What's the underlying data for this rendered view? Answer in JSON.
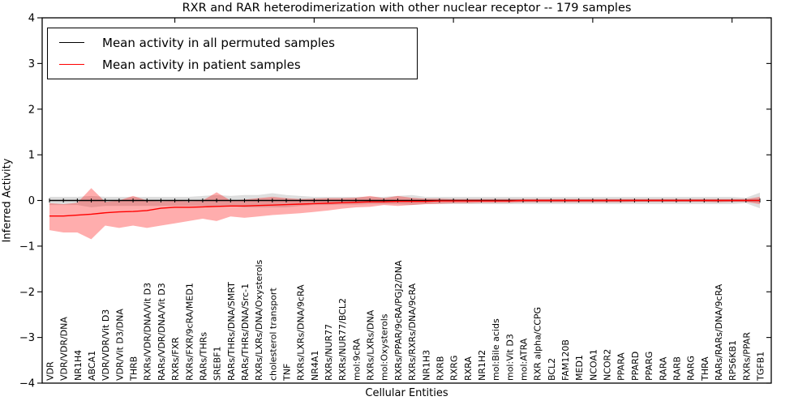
{
  "chart_data": {
    "type": "line",
    "title": "RXR and RAR heterodimerization with other nuclear receptor -- 179 samples",
    "xlabel": "Cellular Entities",
    "ylabel": "Inferred Activity",
    "ylim": [
      -4,
      4
    ],
    "yticks": [
      4,
      3,
      2,
      1,
      0,
      -1,
      -2,
      -3,
      -4
    ],
    "grid": false,
    "legend_position": "upper left",
    "x_categories": [
      "VDR",
      "VDR/VDR/DNA",
      "NR1H4",
      "ABCA1",
      "VDR/VDR/Vit D3",
      "VDR/Vit D3/DNA",
      "THRB",
      "RXRs/VDR/DNA/Vit D3",
      "RARs/VDR/DNA/Vit D3",
      "RXRs/FXR",
      "RXRs/FXR/9cRA/MED1",
      "RARs/THRs",
      "SREBF1",
      "RARs/THRs/DNA/SMRT",
      "RARs/THRs/DNA/Src-1",
      "RXRs/LXRs/DNA/Oxysterols",
      "cholesterol transport",
      "TNF",
      "RXRs/LXRs/DNA/9cRA",
      "NR4A1",
      "RXRs/NUR77",
      "RXRs/NUR77/BCL2",
      "mol:9cRA",
      "RXRs/LXRs/DNA",
      "mol:Oxysterols",
      "RXRs/PPAR/9cRA/PGJ2/DNA",
      "RXRs/RXRs/DNA/9cRA",
      "NR1H3",
      "RXRB",
      "RXRG",
      "RXRA",
      "NR1H2",
      "mol:Bile acids",
      "mol:Vit D3",
      "mol:ATRA",
      "RXR alpha/CCPG",
      "BCL2",
      "FAM120B",
      "MED1",
      "NCOA1",
      "NCOR2",
      "PPARA",
      "PPARD",
      "PPARG",
      "RARA",
      "RARB",
      "RARG",
      "THRA",
      "RARs/RARs/DNA/9cRA",
      "RPS6KB1",
      "RXRs/PPAR",
      "TGFB1"
    ],
    "series": [
      {
        "name": "Mean activity in all permuted samples",
        "color": "#000000",
        "marker": "vertical-dash",
        "values": [
          0,
          0,
          0,
          0,
          0,
          0,
          0,
          0,
          0,
          0,
          0,
          0,
          0,
          0,
          0,
          0,
          0,
          0,
          0,
          0,
          0,
          0,
          0,
          0,
          0,
          0,
          0,
          0,
          0,
          0,
          0,
          0,
          0,
          0,
          0,
          0,
          0,
          0,
          0,
          0,
          0,
          0,
          0,
          0,
          0,
          0,
          0,
          0,
          0,
          0,
          0,
          0
        ]
      },
      {
        "name": "Mean activity in patient samples",
        "color": "#ff0000",
        "marker": "none",
        "values": [
          -0.34,
          -0.34,
          -0.32,
          -0.3,
          -0.27,
          -0.25,
          -0.24,
          -0.22,
          -0.17,
          -0.15,
          -0.15,
          -0.14,
          -0.13,
          -0.12,
          -0.12,
          -0.11,
          -0.1,
          -0.09,
          -0.08,
          -0.07,
          -0.06,
          -0.05,
          -0.04,
          -0.03,
          -0.03,
          -0.02,
          -0.02,
          -0.02,
          -0.01,
          -0.01,
          -0.01,
          -0.01,
          -0.01,
          -0.01,
          0,
          0,
          0,
          0,
          0,
          0,
          0,
          0,
          0,
          0,
          0,
          0,
          0,
          0,
          0,
          0,
          0,
          0
        ]
      }
    ],
    "bands": [
      {
        "name": "permuted-samples-band",
        "color": "#000000",
        "opacity": 0.13,
        "upper": [
          0.08,
          0.08,
          0.08,
          0.1,
          0.08,
          0.08,
          0.08,
          0.08,
          0.08,
          0.08,
          0.08,
          0.1,
          0.12,
          0.1,
          0.12,
          0.12,
          0.16,
          0.12,
          0.1,
          0.08,
          0.08,
          0.08,
          0.08,
          0.08,
          0.08,
          0.1,
          0.12,
          0.08,
          0.08,
          0.08,
          0.08,
          0.08,
          0.08,
          0.08,
          0.08,
          0.08,
          0.08,
          0.08,
          0.08,
          0.08,
          0.08,
          0.08,
          0.08,
          0.08,
          0.08,
          0.08,
          0.08,
          0.08,
          0.08,
          0.08,
          0.06,
          0.17
        ],
        "lower": [
          -0.1,
          -0.1,
          -0.1,
          -0.15,
          -0.12,
          -0.12,
          -0.12,
          -0.12,
          -0.12,
          -0.12,
          -0.12,
          -0.12,
          -0.12,
          -0.12,
          -0.15,
          -0.15,
          -0.15,
          -0.15,
          -0.12,
          -0.1,
          -0.1,
          -0.09,
          -0.09,
          -0.08,
          -0.08,
          -0.08,
          -0.1,
          -0.08,
          -0.08,
          -0.08,
          -0.08,
          -0.08,
          -0.08,
          -0.08,
          -0.08,
          -0.08,
          -0.08,
          -0.08,
          -0.08,
          -0.08,
          -0.08,
          -0.08,
          -0.08,
          -0.08,
          -0.08,
          -0.08,
          -0.08,
          -0.08,
          -0.08,
          -0.08,
          -0.06,
          -0.17
        ]
      },
      {
        "name": "patient-samples-band",
        "color": "#ff0000",
        "opacity": 0.32,
        "upper": [
          -0.06,
          -0.08,
          -0.05,
          0.27,
          -0.03,
          0,
          0.1,
          0,
          -0.02,
          0,
          -0.02,
          0,
          0.18,
          0,
          0.02,
          0.05,
          0.08,
          0.05,
          0.03,
          0.04,
          0.05,
          0.05,
          0.06,
          0.1,
          0.05,
          0.1,
          0.06,
          0.04,
          0.04,
          0.03,
          0.03,
          0.03,
          0.03,
          0.03,
          0.03,
          0.03,
          0.03,
          0.03,
          0.03,
          0.03,
          0.03,
          0.03,
          0.03,
          0.03,
          0.03,
          0.03,
          0.03,
          0.03,
          0.03,
          0.03,
          0.03,
          0.08
        ],
        "lower": [
          -0.65,
          -0.7,
          -0.7,
          -0.85,
          -0.55,
          -0.6,
          -0.55,
          -0.6,
          -0.55,
          -0.5,
          -0.45,
          -0.4,
          -0.45,
          -0.35,
          -0.38,
          -0.35,
          -0.32,
          -0.3,
          -0.28,
          -0.25,
          -0.22,
          -0.18,
          -0.15,
          -0.14,
          -0.1,
          -0.12,
          -0.1,
          -0.08,
          -0.07,
          -0.06,
          -0.06,
          -0.05,
          -0.05,
          -0.05,
          -0.04,
          -0.04,
          -0.04,
          -0.04,
          -0.04,
          -0.04,
          -0.04,
          -0.04,
          -0.03,
          -0.03,
          -0.03,
          -0.03,
          -0.03,
          -0.03,
          -0.04,
          -0.03,
          -0.03,
          -0.08
        ]
      }
    ],
    "top_tick_indices": [
      9,
      19,
      29,
      39,
      49
    ]
  }
}
